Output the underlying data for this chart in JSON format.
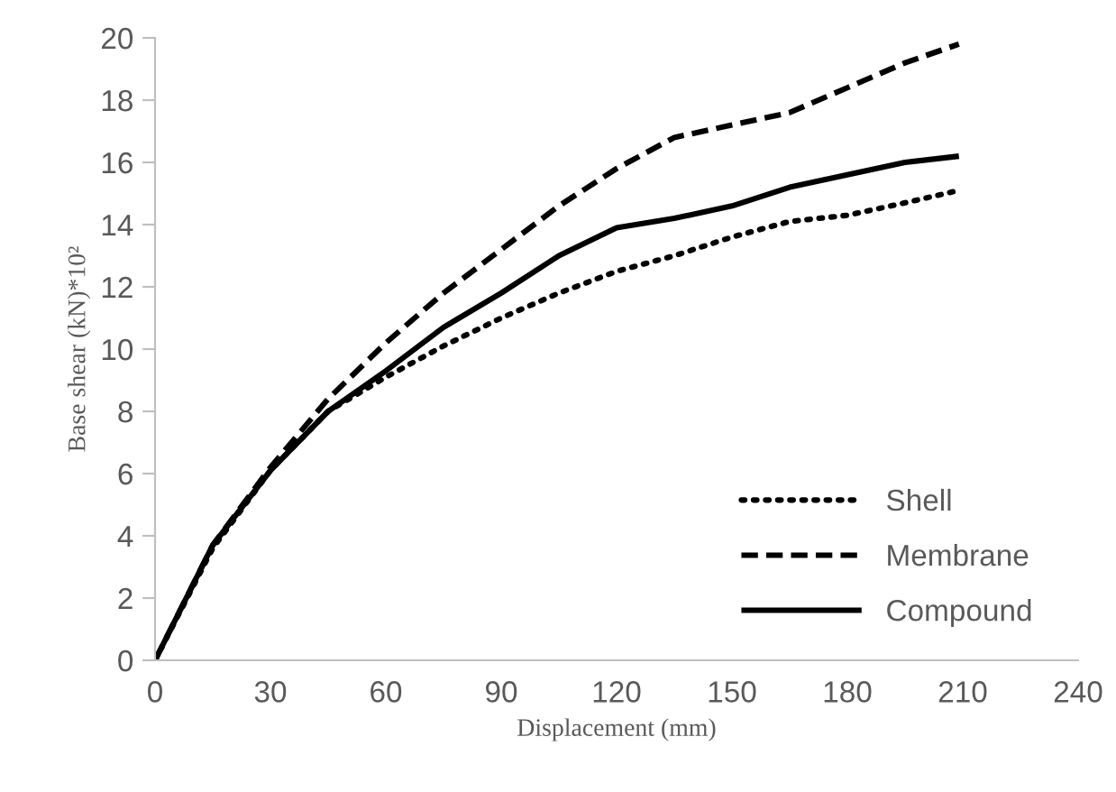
{
  "chart_data": {
    "type": "line",
    "xlabel": "Displacement (mm)",
    "ylabel": "Base shear (kN)*10²",
    "xlim": [
      0,
      240
    ],
    "xticks": [
      0,
      30,
      60,
      90,
      120,
      150,
      180,
      210,
      240
    ],
    "ylim": [
      0,
      20
    ],
    "yticks": [
      0,
      2,
      4,
      6,
      8,
      10,
      12,
      14,
      16,
      18,
      20
    ],
    "grid": false,
    "legend": "bottom right",
    "series": [
      {
        "name": "Shell",
        "color": "#000000",
        "line_style": "dotted",
        "x": [
          0,
          15,
          30,
          45,
          60,
          75,
          90,
          105,
          120,
          135,
          150,
          165,
          180,
          195,
          209
        ],
        "values": [
          0,
          3.6,
          6.1,
          8.0,
          9.1,
          10.1,
          11.0,
          11.8,
          12.5,
          13.0,
          13.6,
          14.1,
          14.3,
          14.7,
          15.1
        ]
      },
      {
        "name": "Membrane",
        "color": "#000000",
        "line_style": "dashed",
        "x": [
          0,
          15,
          30,
          45,
          60,
          75,
          90,
          105,
          120,
          135,
          150,
          165,
          180,
          195,
          209
        ],
        "values": [
          0,
          3.7,
          6.2,
          8.4,
          10.2,
          11.8,
          13.2,
          14.6,
          15.8,
          16.8,
          17.2,
          17.6,
          18.4,
          19.2,
          19.8
        ]
      },
      {
        "name": "Compound",
        "color": "#000000",
        "line_style": "solid",
        "x": [
          0,
          15,
          30,
          45,
          60,
          75,
          90,
          105,
          120,
          135,
          150,
          165,
          180,
          195,
          209
        ],
        "values": [
          0,
          3.7,
          6.1,
          8.0,
          9.3,
          10.7,
          11.8,
          13.0,
          13.9,
          14.2,
          14.6,
          15.2,
          15.6,
          16.0,
          16.2
        ]
      }
    ]
  }
}
